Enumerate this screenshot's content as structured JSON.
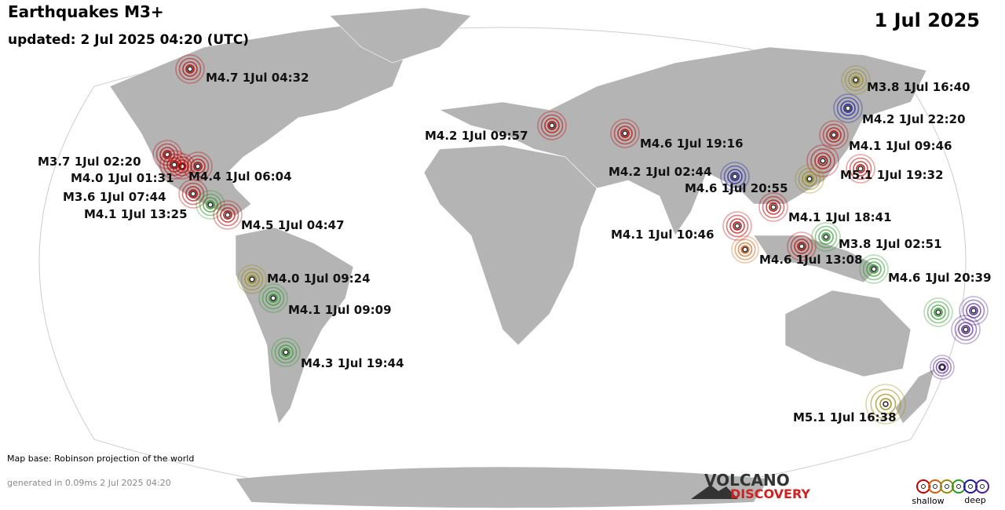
{
  "header": {
    "title": "Earthquakes M3+",
    "updated": "updated:  2 Jul 2025 04:20 (UTC)",
    "date": "1 Jul 2025"
  },
  "quakes": [
    {
      "label": "M4.7  1Jul 04:32",
      "color": "#c00000"
    },
    {
      "label": "M3.7  1Jul 02:20",
      "color": "#c00000"
    },
    {
      "label": "M4.0  1Jul 01:31",
      "color": "#c00000"
    },
    {
      "label": "M4.4  1Jul 06:04",
      "color": "#c00000"
    },
    {
      "label": "M3.6  1Jul 07:44",
      "color": "#c00000"
    },
    {
      "label": "M4.1  1Jul 13:25",
      "color": "#2a9a2a"
    },
    {
      "label": "M4.5  1Jul 04:47",
      "color": "#c00000"
    },
    {
      "label": "M4.0  1Jul 09:24",
      "color": "#9a8a10"
    },
    {
      "label": "M4.1  1Jul 09:09",
      "color": "#2a9a2a"
    },
    {
      "label": "M4.3  1Jul 19:44",
      "color": "#2a9a2a"
    },
    {
      "label": "M4.2  1Jul 09:57",
      "color": "#c00000"
    },
    {
      "label": "M4.6  1Jul 19:16",
      "color": "#c00000"
    },
    {
      "label": "M3.8  1Jul 16:40",
      "color": "#9a8a10"
    },
    {
      "label": "M4.2  1Jul 22:20",
      "color": "#1a1aa0"
    },
    {
      "label": "M4.1  1Jul 09:46",
      "color": "#c00000"
    },
    {
      "label": "M4.2  1Jul 02:44",
      "color": "#1a1aa0"
    },
    {
      "label": "M4.6  1Jul 20:55",
      "color": "#9a8a10"
    },
    {
      "label": "M5.1  1Jul 19:32",
      "color": "#c00000"
    },
    {
      "label": "M4.1  1Jul 18:41",
      "color": "#c00000"
    },
    {
      "label": "M4.1  1Jul 10:46",
      "color": "#c00000"
    },
    {
      "label": "M3.8  1Jul 02:51",
      "color": "#2a9a2a"
    },
    {
      "label": "M4.6  1Jul 13:08",
      "color": "#c00000"
    },
    {
      "label": "M4.6  1Jul 20:39",
      "color": "#2a9a2a"
    },
    {
      "label": "M5.1  1Jul 16:38",
      "color": "#9a8a10"
    }
  ],
  "footer": {
    "map_base": "Map base: Robinson projection of the world",
    "generated": "generated in 0.09ms  2 Jul 2025 04:20"
  },
  "logo": {
    "line1": "VOLCANO",
    "line2": "DISCOVERY"
  },
  "legend": {
    "shallow": "shallow",
    "deep": "deep"
  }
}
